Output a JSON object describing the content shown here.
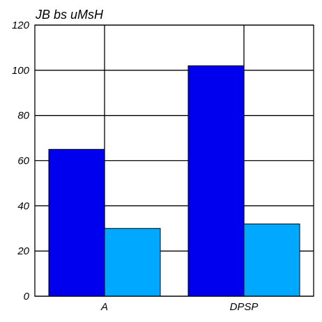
{
  "chart_data": {
    "type": "bar",
    "title": "JB bs uMsH",
    "xlabel": "",
    "ylabel": "",
    "categories": [
      "A",
      "DPSP"
    ],
    "series": [
      {
        "values": [
          65,
          102
        ],
        "color": "#0000ee"
      },
      {
        "values": [
          30,
          32
        ],
        "color": "#00a8ff"
      }
    ],
    "ylim": [
      0,
      120
    ],
    "yticks": [
      0,
      20,
      40,
      60,
      80,
      100,
      120
    ],
    "grid": {
      "horizontal": true,
      "vertical_at_category_centers": true
    },
    "legend": "none"
  }
}
